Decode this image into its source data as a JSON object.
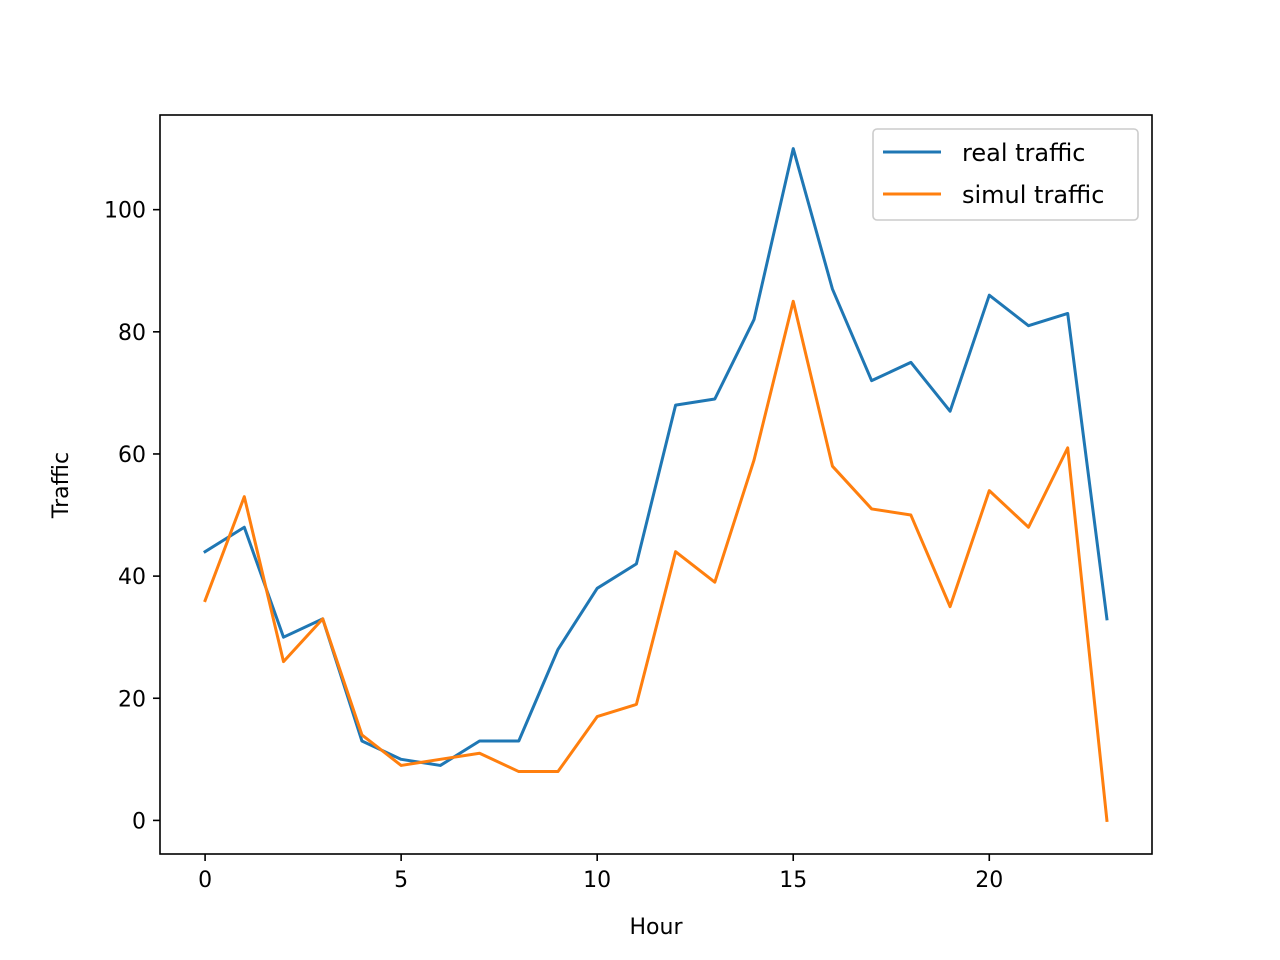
{
  "chart_data": {
    "type": "line",
    "title": "",
    "xlabel": "Hour",
    "ylabel": "Traffic",
    "x": [
      0,
      1,
      2,
      3,
      4,
      5,
      6,
      7,
      8,
      9,
      10,
      11,
      12,
      13,
      14,
      15,
      16,
      17,
      18,
      19,
      20,
      21,
      22,
      23
    ],
    "xlim": [
      -1.15,
      24.15
    ],
    "ylim": [
      -5.5,
      115.5
    ],
    "xticks": [
      0,
      5,
      10,
      15,
      20
    ],
    "yticks": [
      0,
      20,
      40,
      60,
      80,
      100
    ],
    "xtick_labels": [
      "0",
      "5",
      "10",
      "15",
      "20"
    ],
    "ytick_labels": [
      "0",
      "20",
      "40",
      "60",
      "80",
      "100"
    ],
    "grid": false,
    "legend_position": "top-right",
    "series": [
      {
        "name": "real traffic",
        "color": "#1f77b4",
        "values": [
          44,
          48,
          30,
          33,
          13,
          10,
          9,
          13,
          13,
          28,
          38,
          42,
          68,
          69,
          82,
          110,
          87,
          72,
          75,
          67,
          86,
          81,
          83,
          33
        ]
      },
      {
        "name": "simul traffic",
        "color": "#ff7f0e",
        "values": [
          36,
          53,
          26,
          33,
          14,
          9,
          10,
          11,
          8,
          8,
          17,
          19,
          44,
          39,
          59,
          85,
          58,
          51,
          50,
          35,
          54,
          48,
          61,
          0
        ]
      }
    ]
  }
}
